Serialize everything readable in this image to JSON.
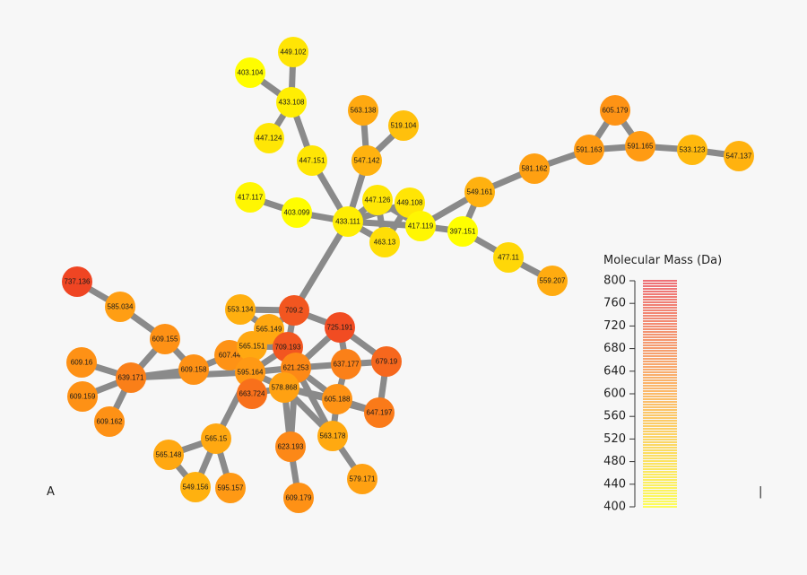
{
  "corner_left_label": "A",
  "corner_right_label": "|",
  "legend": {
    "title": "Molecular Mass (Da)",
    "min": 400,
    "max": 800,
    "ticks": [
      "800",
      "760",
      "720",
      "680",
      "640",
      "600",
      "560",
      "520",
      "480",
      "440",
      "400"
    ],
    "color_low": "#ffff00",
    "color_high": "#e8202a"
  },
  "colors": {
    "edge": "#8a8a8a",
    "node_stroke": "#ffffff"
  },
  "nodes": [
    {
      "id": "n1",
      "label": "449.102"
    },
    {
      "id": "n2",
      "label": "403.104"
    },
    {
      "id": "n3",
      "label": "433.108"
    },
    {
      "id": "n4",
      "label": "447.124"
    },
    {
      "id": "n5",
      "label": "447.151"
    },
    {
      "id": "n6",
      "label": "563.138"
    },
    {
      "id": "n7",
      "label": "519.104"
    },
    {
      "id": "n8",
      "label": "547.142"
    },
    {
      "id": "n9",
      "label": "417.117"
    },
    {
      "id": "n10",
      "label": "403.099"
    },
    {
      "id": "n11",
      "label": "433.111"
    },
    {
      "id": "n12",
      "label": "447.126"
    },
    {
      "id": "n13",
      "label": "449.108"
    },
    {
      "id": "n14",
      "label": "417.119"
    },
    {
      "id": "n15",
      "label": "463.13"
    },
    {
      "id": "n16",
      "label": "397.151"
    },
    {
      "id": "n17",
      "label": "549.161"
    },
    {
      "id": "n18",
      "label": "581.162"
    },
    {
      "id": "n19",
      "label": "605.179"
    },
    {
      "id": "n20",
      "label": "591.163"
    },
    {
      "id": "n21",
      "label": "591.165"
    },
    {
      "id": "n22",
      "label": "533.123"
    },
    {
      "id": "n23",
      "label": "547.137"
    },
    {
      "id": "n24",
      "label": "477.11"
    },
    {
      "id": "n25",
      "label": "559.207"
    },
    {
      "id": "n26",
      "label": "737.136"
    },
    {
      "id": "n27",
      "label": "585.034"
    },
    {
      "id": "n28",
      "label": "609.155"
    },
    {
      "id": "n29",
      "label": "609.16"
    },
    {
      "id": "n30",
      "label": "639.171"
    },
    {
      "id": "n31",
      "label": "609.159"
    },
    {
      "id": "n32",
      "label": "609.162"
    },
    {
      "id": "n33",
      "label": "609.158"
    },
    {
      "id": "n34",
      "label": "553.134"
    },
    {
      "id": "n35",
      "label": "709.2"
    },
    {
      "id": "n36",
      "label": "565.149"
    },
    {
      "id": "n37",
      "label": "725.191"
    },
    {
      "id": "n38",
      "label": "607.44"
    },
    {
      "id": "n39",
      "label": "565.151"
    },
    {
      "id": "n40",
      "label": "709.193"
    },
    {
      "id": "n41",
      "label": "595.164"
    },
    {
      "id": "n42",
      "label": "621.253"
    },
    {
      "id": "n43",
      "label": "637.177"
    },
    {
      "id": "n44",
      "label": "679.19"
    },
    {
      "id": "n45",
      "label": "663.724"
    },
    {
      "id": "n46",
      "label": "578.868"
    },
    {
      "id": "n47",
      "label": "605.188"
    },
    {
      "id": "n48",
      "label": "647.197"
    },
    {
      "id": "n49",
      "label": "565.15"
    },
    {
      "id": "n50",
      "label": "565.148"
    },
    {
      "id": "n51",
      "label": "623.193"
    },
    {
      "id": "n52",
      "label": "563.178"
    },
    {
      "id": "n53",
      "label": "549.156"
    },
    {
      "id": "n54",
      "label": "595.157"
    },
    {
      "id": "n55",
      "label": "579.171"
    },
    {
      "id": "n56",
      "label": "609.179"
    }
  ],
  "edges": [
    [
      "n1",
      "n3"
    ],
    [
      "n2",
      "n3"
    ],
    [
      "n3",
      "n4"
    ],
    [
      "n3",
      "n5"
    ],
    [
      "n5",
      "n11"
    ],
    [
      "n6",
      "n8"
    ],
    [
      "n7",
      "n8"
    ],
    [
      "n8",
      "n11"
    ],
    [
      "n9",
      "n10"
    ],
    [
      "n10",
      "n11"
    ],
    [
      "n11",
      "n12"
    ],
    [
      "n11",
      "n13"
    ],
    [
      "n11",
      "n14"
    ],
    [
      "n11",
      "n15"
    ],
    [
      "n12",
      "n14"
    ],
    [
      "n13",
      "n14"
    ],
    [
      "n12",
      "n15"
    ],
    [
      "n13",
      "n15"
    ],
    [
      "n14",
      "n16"
    ],
    [
      "n14",
      "n17"
    ],
    [
      "n16",
      "n17"
    ],
    [
      "n17",
      "n18"
    ],
    [
      "n18",
      "n20"
    ],
    [
      "n19",
      "n20"
    ],
    [
      "n19",
      "n21"
    ],
    [
      "n20",
      "n21"
    ],
    [
      "n21",
      "n22"
    ],
    [
      "n22",
      "n23"
    ],
    [
      "n16",
      "n24"
    ],
    [
      "n24",
      "n25"
    ],
    [
      "n11",
      "n35"
    ],
    [
      "n26",
      "n27"
    ],
    [
      "n27",
      "n28"
    ],
    [
      "n28",
      "n30"
    ],
    [
      "n28",
      "n33"
    ],
    [
      "n29",
      "n30"
    ],
    [
      "n31",
      "n30"
    ],
    [
      "n32",
      "n30"
    ],
    [
      "n30",
      "n33"
    ],
    [
      "n30",
      "n41"
    ],
    [
      "n33",
      "n38"
    ],
    [
      "n38",
      "n41"
    ],
    [
      "n38",
      "n39"
    ],
    [
      "n39",
      "n41"
    ],
    [
      "n34",
      "n36"
    ],
    [
      "n34",
      "n35"
    ],
    [
      "n35",
      "n36"
    ],
    [
      "n35",
      "n40"
    ],
    [
      "n35",
      "n37"
    ],
    [
      "n36",
      "n39"
    ],
    [
      "n36",
      "n40"
    ],
    [
      "n39",
      "n40"
    ],
    [
      "n40",
      "n41"
    ],
    [
      "n40",
      "n42"
    ],
    [
      "n37",
      "n42"
    ],
    [
      "n37",
      "n43"
    ],
    [
      "n37",
      "n44"
    ],
    [
      "n41",
      "n42"
    ],
    [
      "n41",
      "n45"
    ],
    [
      "n41",
      "n46"
    ],
    [
      "n41",
      "n49"
    ],
    [
      "n42",
      "n43"
    ],
    [
      "n42",
      "n46"
    ],
    [
      "n42",
      "n47"
    ],
    [
      "n42",
      "n52"
    ],
    [
      "n42",
      "n51"
    ],
    [
      "n43",
      "n44"
    ],
    [
      "n43",
      "n47"
    ],
    [
      "n44",
      "n48"
    ],
    [
      "n47",
      "n48"
    ],
    [
      "n46",
      "n47"
    ],
    [
      "n46",
      "n48"
    ],
    [
      "n46",
      "n52"
    ],
    [
      "n46",
      "n51"
    ],
    [
      "n45",
      "n46"
    ],
    [
      "n49",
      "n50"
    ],
    [
      "n49",
      "n53"
    ],
    [
      "n49",
      "n54"
    ],
    [
      "n50",
      "n53"
    ],
    [
      "n51",
      "n56"
    ],
    [
      "n52",
      "n55"
    ],
    [
      "n47",
      "n52"
    ]
  ]
}
